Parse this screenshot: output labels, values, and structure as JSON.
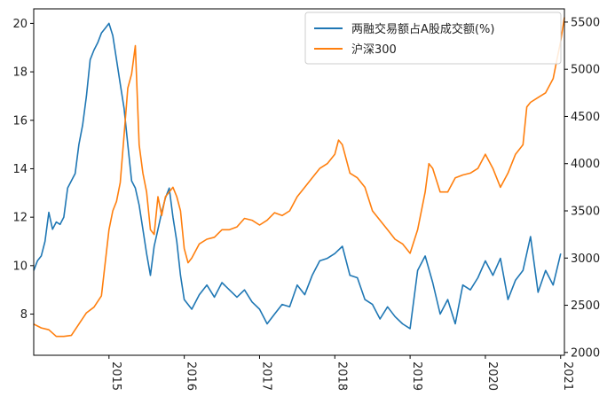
{
  "chart_data": {
    "type": "line",
    "title": "",
    "xlabel": "",
    "ylabel": "",
    "y2label": "",
    "grid": false,
    "legend_position": "top-right",
    "xlim": [
      2014.0,
      2021.05
    ],
    "ylim": [
      6.3,
      20.6
    ],
    "y2lim": [
      1970,
      5640
    ],
    "x_ticks": [
      2015,
      2016,
      2017,
      2018,
      2019,
      2020,
      2021
    ],
    "x_tick_labels": [
      "2015",
      "2016",
      "2017",
      "2018",
      "2019",
      "2020",
      "2021"
    ],
    "y_ticks": [
      8,
      10,
      12,
      14,
      16,
      18,
      20
    ],
    "y_tick_labels": [
      "8",
      "10",
      "12",
      "14",
      "16",
      "18",
      "20"
    ],
    "y2_ticks": [
      2000,
      2500,
      3000,
      3500,
      4000,
      4500,
      5000,
      5500
    ],
    "y2_tick_labels": [
      "2000",
      "2500",
      "3000",
      "3500",
      "4000",
      "4500",
      "5000",
      "5500"
    ],
    "series": [
      {
        "name": "两融交易额占A股成交额(%)",
        "axis": "left",
        "color": "#1f77b4",
        "x": [
          2014.0,
          2014.05,
          2014.1,
          2014.15,
          2014.2,
          2014.25,
          2014.3,
          2014.35,
          2014.4,
          2014.45,
          2014.5,
          2014.55,
          2014.6,
          2014.65,
          2014.7,
          2014.75,
          2014.8,
          2014.85,
          2014.9,
          2014.95,
          2015.0,
          2015.05,
          2015.1,
          2015.15,
          2015.2,
          2015.25,
          2015.3,
          2015.35,
          2015.4,
          2015.45,
          2015.5,
          2015.55,
          2015.6,
          2015.65,
          2015.7,
          2015.75,
          2015.8,
          2015.85,
          2015.9,
          2015.95,
          2016.0,
          2016.1,
          2016.2,
          2016.3,
          2016.4,
          2016.5,
          2016.6,
          2016.7,
          2016.8,
          2016.9,
          2017.0,
          2017.1,
          2017.2,
          2017.3,
          2017.4,
          2017.5,
          2017.6,
          2017.7,
          2017.8,
          2017.9,
          2018.0,
          2018.1,
          2018.2,
          2018.3,
          2018.4,
          2018.5,
          2018.6,
          2018.7,
          2018.8,
          2018.9,
          2019.0,
          2019.1,
          2019.2,
          2019.3,
          2019.4,
          2019.5,
          2019.6,
          2019.7,
          2019.8,
          2019.9,
          2020.0,
          2020.1,
          2020.2,
          2020.3,
          2020.4,
          2020.5,
          2020.6,
          2020.7,
          2020.8,
          2020.9,
          2021.0
        ],
        "values": [
          9.8,
          10.2,
          10.4,
          11.0,
          12.2,
          11.5,
          11.8,
          11.7,
          12.0,
          13.2,
          13.5,
          13.8,
          15.0,
          15.8,
          17.0,
          18.5,
          18.9,
          19.2,
          19.6,
          19.8,
          20.0,
          19.5,
          18.5,
          17.5,
          16.5,
          15.0,
          13.5,
          13.2,
          12.5,
          11.5,
          10.5,
          9.6,
          10.8,
          11.5,
          12.2,
          12.8,
          13.2,
          12.0,
          11.0,
          9.6,
          8.6,
          8.2,
          8.8,
          9.2,
          8.7,
          9.3,
          9.0,
          8.7,
          9.0,
          8.5,
          8.2,
          7.6,
          8.0,
          8.4,
          8.3,
          9.2,
          8.8,
          9.6,
          10.2,
          10.3,
          10.5,
          10.8,
          9.6,
          9.5,
          8.6,
          8.4,
          7.8,
          8.3,
          7.9,
          7.6,
          7.4,
          9.8,
          10.4,
          9.3,
          8.0,
          8.6,
          7.6,
          9.2,
          9.0,
          9.5,
          10.2,
          9.6,
          10.3,
          8.6,
          9.4,
          9.8,
          11.2,
          8.9,
          9.8,
          9.2,
          10.5
        ]
      },
      {
        "name": "沪深300",
        "axis": "right",
        "color": "#ff7f0e",
        "x": [
          2014.0,
          2014.1,
          2014.2,
          2014.3,
          2014.4,
          2014.5,
          2014.6,
          2014.7,
          2014.8,
          2014.9,
          2015.0,
          2015.05,
          2015.1,
          2015.15,
          2015.2,
          2015.25,
          2015.3,
          2015.35,
          2015.4,
          2015.45,
          2015.5,
          2015.55,
          2015.6,
          2015.65,
          2015.7,
          2015.75,
          2015.8,
          2015.85,
          2015.9,
          2015.95,
          2016.0,
          2016.05,
          2016.1,
          2016.2,
          2016.3,
          2016.4,
          2016.5,
          2016.6,
          2016.7,
          2016.8,
          2016.9,
          2017.0,
          2017.1,
          2017.2,
          2017.3,
          2017.4,
          2017.5,
          2017.6,
          2017.7,
          2017.8,
          2017.9,
          2018.0,
          2018.05,
          2018.1,
          2018.2,
          2018.3,
          2018.4,
          2018.5,
          2018.6,
          2018.7,
          2018.8,
          2018.9,
          2019.0,
          2019.1,
          2019.2,
          2019.25,
          2019.3,
          2019.4,
          2019.5,
          2019.6,
          2019.7,
          2019.8,
          2019.9,
          2020.0,
          2020.1,
          2020.2,
          2020.3,
          2020.4,
          2020.5,
          2020.55,
          2020.6,
          2020.7,
          2020.8,
          2020.9,
          2021.0,
          2021.05
        ],
        "values": [
          2300,
          2260,
          2240,
          2170,
          2170,
          2180,
          2300,
          2420,
          2480,
          2600,
          3300,
          3500,
          3600,
          3800,
          4300,
          4800,
          4950,
          5250,
          4200,
          3900,
          3700,
          3300,
          3250,
          3650,
          3450,
          3650,
          3700,
          3750,
          3650,
          3500,
          3100,
          2950,
          3000,
          3150,
          3200,
          3220,
          3300,
          3300,
          3330,
          3420,
          3400,
          3350,
          3400,
          3480,
          3450,
          3500,
          3650,
          3750,
          3850,
          3950,
          4000,
          4100,
          4250,
          4200,
          3900,
          3850,
          3750,
          3500,
          3400,
          3300,
          3200,
          3150,
          3050,
          3300,
          3700,
          4000,
          3950,
          3700,
          3700,
          3850,
          3880,
          3900,
          3950,
          4100,
          3950,
          3750,
          3900,
          4100,
          4200,
          4600,
          4650,
          4700,
          4750,
          4900,
          5300,
          5550
        ]
      }
    ]
  }
}
